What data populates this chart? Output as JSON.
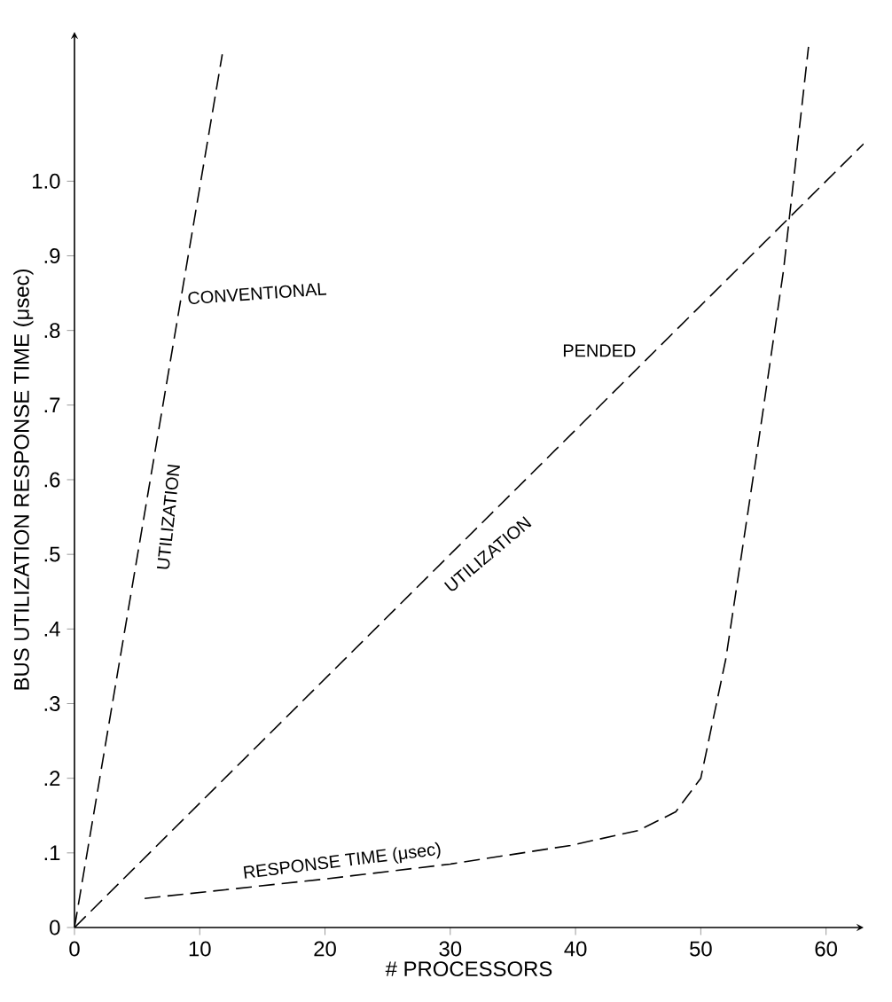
{
  "chart_data": {
    "type": "line",
    "xlabel": "# PROCESSORS",
    "ylabel": "BUS UTILIZATION RESPONSE TIME (μsec)",
    "xlim": [
      0,
      63
    ],
    "ylim": [
      0,
      1.2
    ],
    "xticks": [
      0,
      10,
      20,
      30,
      40,
      50,
      60
    ],
    "yticks": [
      0,
      {
        "value": 0.1,
        "label": ".1"
      },
      {
        "value": 0.2,
        "label": ".2"
      },
      {
        "value": 0.3,
        "label": ".3"
      },
      {
        "value": 0.4,
        "label": ".4"
      },
      {
        "value": 0.5,
        "label": ".5"
      },
      {
        "value": 0.6,
        "label": ".6"
      },
      {
        "value": 0.7,
        "label": ".7"
      },
      {
        "value": 0.8,
        "label": ".8"
      },
      {
        "value": 0.9,
        "label": ".9"
      },
      {
        "value": 1.0,
        "label": "1.0"
      }
    ],
    "grid": false,
    "legend": false,
    "line_style": "dashed",
    "marker": "none",
    "series": [
      {
        "name": "CONVENTIONAL",
        "color": "#000000",
        "x": [
          0,
          11.8
        ],
        "values": [
          0,
          1.17
        ]
      },
      {
        "name": "PENDED",
        "color": "#000000",
        "x": [
          0,
          63
        ],
        "values": [
          0,
          1.05
        ]
      },
      {
        "name": "RESPONSE TIME (μsec)",
        "color": "#000000",
        "x": [
          5.6,
          20,
          30,
          39.6,
          45,
          48,
          50,
          52,
          54.6,
          56.6,
          58.6
        ],
        "values": [
          0.039,
          0.065,
          0.085,
          0.11,
          0.13,
          0.155,
          0.2,
          0.36,
          0.65,
          0.88,
          1.18
        ]
      }
    ],
    "annotations": [
      "UTILIZATION",
      "UTILIZATION"
    ]
  }
}
